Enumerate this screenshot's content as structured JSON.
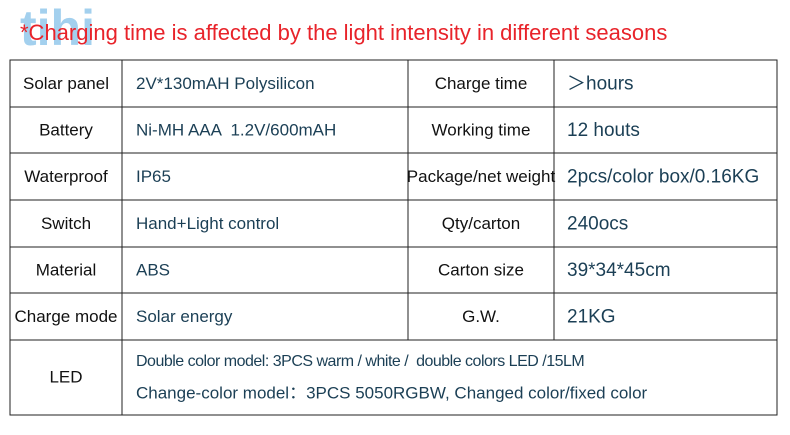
{
  "watermark": "tihi",
  "title": "*Charging time is affected by the light intensity in different seasons",
  "table": {
    "rows": [
      [
        "Solar panel",
        "2V*130mAH Polysilicon",
        "Charge time",
        "＞hours"
      ],
      [
        "Battery",
        "Ni-MH AAA  1.2V/600mAH",
        "Working time",
        "12 houts"
      ],
      [
        "Waterproof",
        "IP65",
        "Package/net weight",
        "2pcs/color box/0.16KG"
      ],
      [
        "Switch",
        "Hand+Light control",
        "Qty/carton",
        "240ocs"
      ],
      [
        "Material",
        "ABS",
        "Carton size",
        "39*34*45cm"
      ],
      [
        "Charge mode",
        "Solar energy",
        "G.W.",
        "21KG"
      ]
    ],
    "led": {
      "label": "LED",
      "lines": [
        "Double color model: 3PCS warm / white /  double colors LED /15LM",
        "Change-color model：3PCS 5050RGBW, Changed color/fixed color"
      ]
    }
  }
}
